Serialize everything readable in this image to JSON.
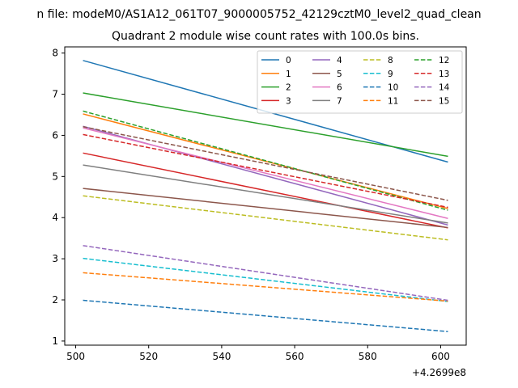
{
  "chart_data": {
    "type": "line",
    "suptitle": "n file: modeM0/AS1A12_061T07_9000005752_42129cztM0_level2_quad_clean",
    "title": "Quadrant 2 module wise count rates with 100.0s bins.",
    "x_offset_label": "+4.2699e8",
    "xlim": [
      497,
      607
    ],
    "ylim": [
      0.9,
      8.15
    ],
    "x_ticks": [
      500,
      520,
      540,
      560,
      580,
      600
    ],
    "y_ticks": [
      1,
      2,
      3,
      4,
      5,
      6,
      7,
      8
    ],
    "x": [
      502,
      602
    ],
    "grid": false,
    "legend_position": "top-right",
    "series": [
      {
        "name": "0",
        "color": "#1f77b4",
        "dash": "solid",
        "values": [
          7.82,
          5.35
        ]
      },
      {
        "name": "1",
        "color": "#ff7f0e",
        "dash": "solid",
        "values": [
          6.52,
          4.22
        ]
      },
      {
        "name": "2",
        "color": "#2ca02c",
        "dash": "solid",
        "values": [
          7.03,
          5.49
        ]
      },
      {
        "name": "3",
        "color": "#d62728",
        "dash": "solid",
        "values": [
          5.57,
          3.75
        ]
      },
      {
        "name": "4",
        "color": "#9467bd",
        "dash": "solid",
        "values": [
          6.22,
          3.82
        ]
      },
      {
        "name": "5",
        "color": "#8c564b",
        "dash": "solid",
        "values": [
          4.71,
          3.76
        ]
      },
      {
        "name": "6",
        "color": "#e377c2",
        "dash": "solid",
        "values": [
          6.18,
          3.98
        ]
      },
      {
        "name": "7",
        "color": "#7f7f7f",
        "dash": "solid",
        "values": [
          5.28,
          3.87
        ]
      },
      {
        "name": "8",
        "color": "#bcbd22",
        "dash": "dashed",
        "values": [
          4.53,
          3.46
        ]
      },
      {
        "name": "9",
        "color": "#17becf",
        "dash": "dashed",
        "values": [
          3.01,
          1.96
        ]
      },
      {
        "name": "10",
        "color": "#1f77b4",
        "dash": "dashed",
        "values": [
          1.99,
          1.23
        ]
      },
      {
        "name": "11",
        "color": "#ff7f0e",
        "dash": "dashed",
        "values": [
          2.66,
          1.97
        ]
      },
      {
        "name": "12",
        "color": "#2ca02c",
        "dash": "dashed",
        "values": [
          6.59,
          4.18
        ]
      },
      {
        "name": "13",
        "color": "#d62728",
        "dash": "dashed",
        "values": [
          6.02,
          4.25
        ]
      },
      {
        "name": "14",
        "color": "#9467bd",
        "dash": "dashed",
        "values": [
          3.32,
          1.99
        ]
      },
      {
        "name": "15",
        "color": "#8c564b",
        "dash": "dashed",
        "values": [
          6.21,
          4.42
        ]
      }
    ]
  }
}
